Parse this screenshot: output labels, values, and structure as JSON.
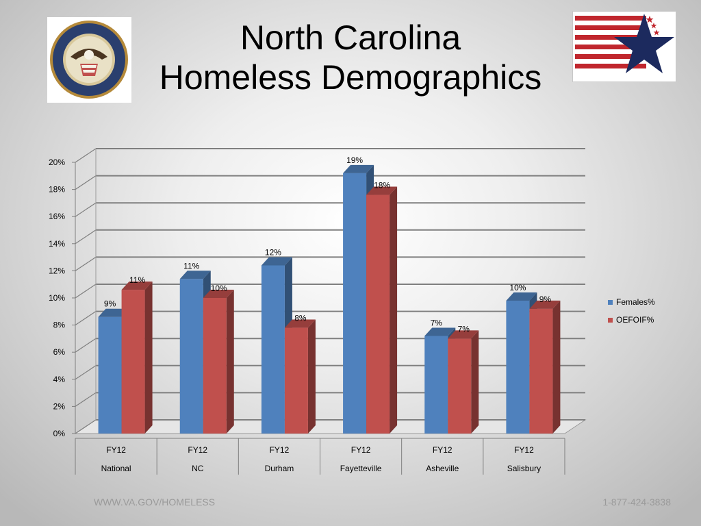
{
  "title_line1": "North Carolina",
  "title_line2": "Homeless Demographics",
  "logo_left_text": "DEPARTMENT OF VETERANS AFFAIRS · UNITED STATES OF AMERICA",
  "logo_right_text": "VA MID-ATLANTIC HEALTH CARE NETWORK- VISN SIX",
  "footer_left": "WWW.VA.GOV/HOMELESS",
  "footer_right": "1-877-424-3838",
  "colors": {
    "females": "#4f81bd",
    "oefoif": "#c0504d"
  },
  "chart_data": {
    "type": "bar",
    "categories": [
      [
        "FY12",
        "National"
      ],
      [
        "FY12",
        "NC"
      ],
      [
        "FY12",
        "Durham"
      ],
      [
        "FY12",
        "Fayetteville"
      ],
      [
        "FY12",
        "Asheville"
      ],
      [
        "FY12",
        "Salisbury"
      ]
    ],
    "series": [
      {
        "name": "Females%",
        "values": [
          8.6,
          11.4,
          12.4,
          19.2,
          7.2,
          9.8
        ],
        "labels": [
          "9%",
          "11%",
          "12%",
          "19%",
          "7%",
          "10%"
        ]
      },
      {
        "name": "OEFOIF%",
        "values": [
          10.6,
          10.0,
          7.8,
          17.6,
          7.0,
          9.2
        ],
        "labels": [
          "11%",
          "10%",
          "8%",
          "18%",
          "7%",
          "9%"
        ]
      }
    ],
    "yticks": [
      "0%",
      "2%",
      "4%",
      "6%",
      "8%",
      "10%",
      "12%",
      "14%",
      "16%",
      "18%",
      "20%"
    ],
    "ylim": [
      0,
      20
    ],
    "grid": true,
    "legend": "right",
    "style": "3d-clustered-column"
  }
}
